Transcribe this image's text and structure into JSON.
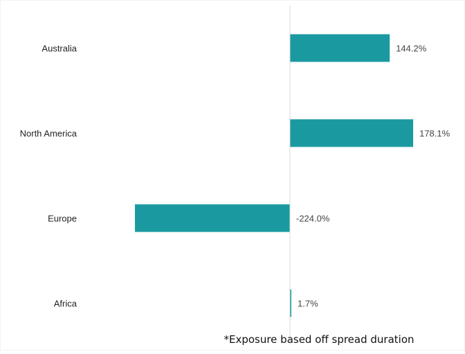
{
  "chart_data": {
    "type": "bar",
    "orientation": "horizontal",
    "categories": [
      "Australia",
      "North America",
      "Europe",
      "Africa"
    ],
    "values": [
      144.2,
      178.1,
      -224.0,
      1.7
    ],
    "data_labels": [
      "144.2%",
      "178.1%",
      "-224.0%",
      "1.7%"
    ],
    "unit": "%",
    "bar_color": "#1a9aa0",
    "zero_line_color": "#d9d9d9",
    "grid": false,
    "legend": "none"
  },
  "footnote": "*Exposure based off spread duration"
}
